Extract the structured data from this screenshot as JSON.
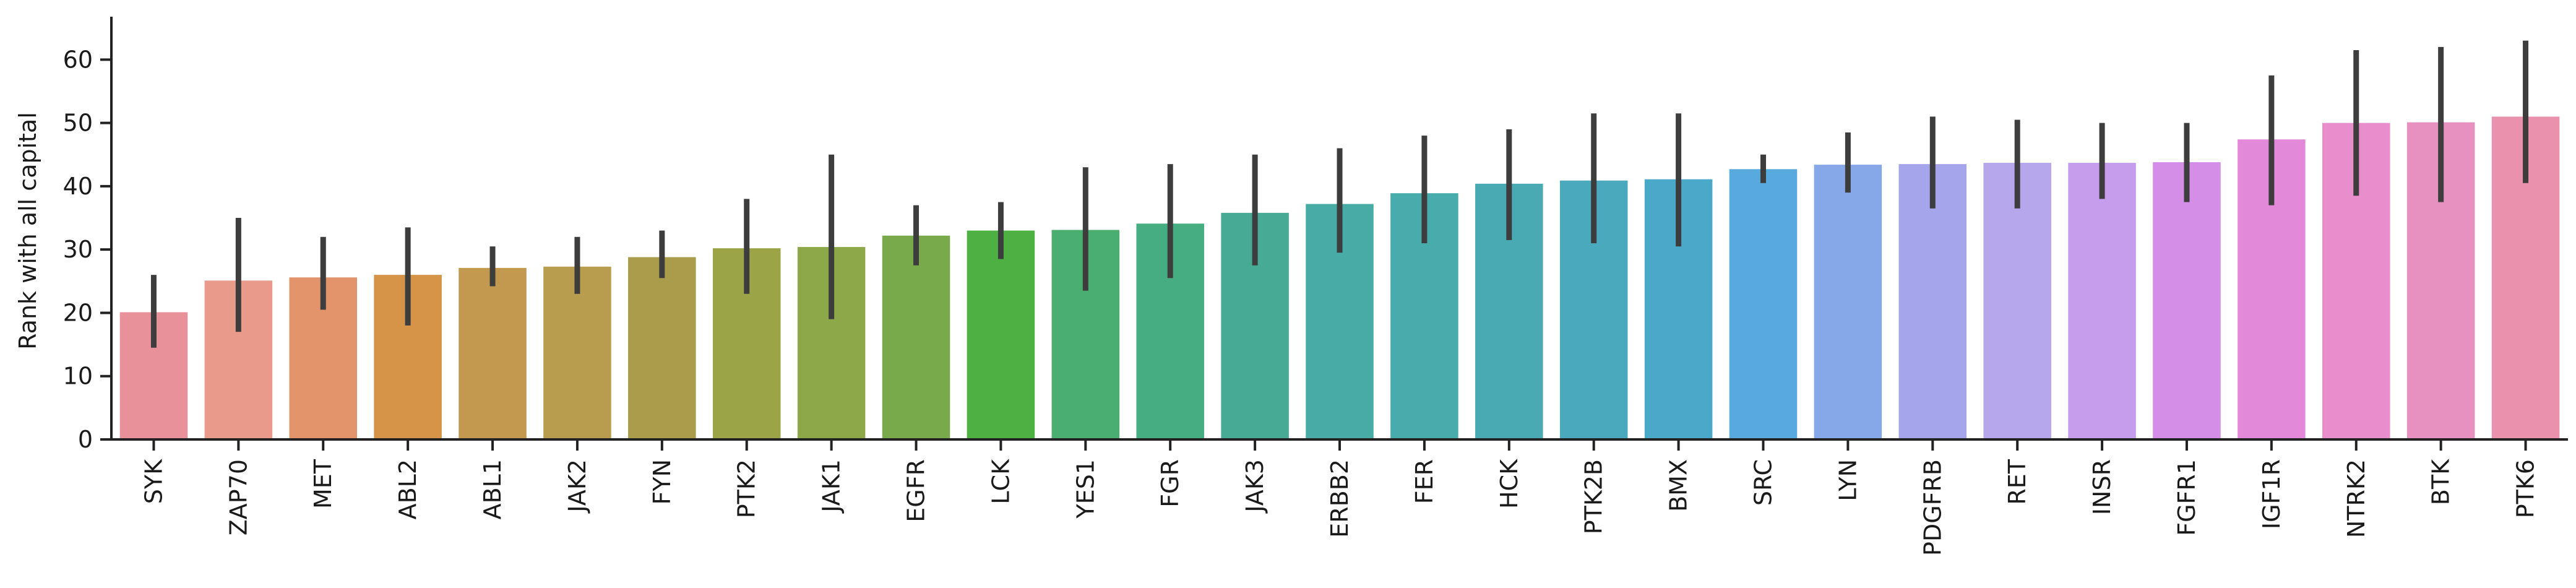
{
  "chart_data": {
    "type": "bar",
    "title": "",
    "xlabel": "",
    "ylabel": "Rank with all capital",
    "ylim": [
      0,
      66
    ],
    "yticks": [
      0,
      10,
      20,
      30,
      40,
      50,
      60
    ],
    "grid": false,
    "categories": [
      "SYK",
      "ZAP70",
      "MET",
      "ABL2",
      "ABL1",
      "JAK2",
      "FYN",
      "PTK2",
      "JAK1",
      "EGFR",
      "LCK",
      "YES1",
      "FGR",
      "JAK3",
      "ERBB2",
      "FER",
      "HCK",
      "PTK2B",
      "BMX",
      "SRC",
      "LYN",
      "PDGFRB",
      "RET",
      "INSR",
      "FGFR1",
      "IGF1R",
      "NTRK2",
      "BTK",
      "PTK6"
    ],
    "values": [
      20.1,
      25.1,
      25.6,
      26.0,
      27.1,
      27.3,
      28.8,
      30.2,
      30.4,
      32.2,
      33.0,
      33.1,
      34.1,
      35.8,
      37.2,
      38.9,
      40.4,
      40.9,
      41.1,
      42.7,
      43.4,
      43.5,
      43.7,
      43.7,
      43.8,
      47.4,
      50.0,
      50.1,
      51.0
    ],
    "error_low": [
      14.5,
      17.0,
      20.5,
      18.0,
      24.2,
      23.0,
      25.5,
      23.0,
      19.0,
      27.5,
      28.5,
      23.5,
      25.5,
      27.5,
      29.5,
      31.0,
      31.5,
      31.0,
      30.5,
      40.5,
      39.0,
      36.5,
      36.5,
      38.0,
      37.5,
      37.0,
      38.5,
      37.5,
      40.5
    ],
    "error_high": [
      26.0,
      35.0,
      32.0,
      33.5,
      30.5,
      32.0,
      33.0,
      38.0,
      45.0,
      37.0,
      37.5,
      43.0,
      43.5,
      45.0,
      46.0,
      48.0,
      49.0,
      51.5,
      51.5,
      45.0,
      48.5,
      51.0,
      50.5,
      50.0,
      50.0,
      57.5,
      61.5,
      62.0,
      63.0
    ],
    "colors": [
      "#e8919b",
      "#e99a8b",
      "#e3946a",
      "#d59448",
      "#c2994f",
      "#b89d4f",
      "#a99c4a",
      "#9ba446",
      "#8ca849",
      "#78a94a",
      "#4db043",
      "#4aae70",
      "#46ac82",
      "#46aa95",
      "#48aca4",
      "#48acac",
      "#4aaab4",
      "#4aa9bd",
      "#4aa8c9",
      "#58aade",
      "#86a8e8",
      "#a4a5ea",
      "#b6a6eb",
      "#c49eec",
      "#d58ee8",
      "#e28ad9",
      "#e88ecc",
      "#e791c0",
      "#e991ad"
    ],
    "error_color": "#3d3d3d",
    "axis_color": "#222222"
  }
}
